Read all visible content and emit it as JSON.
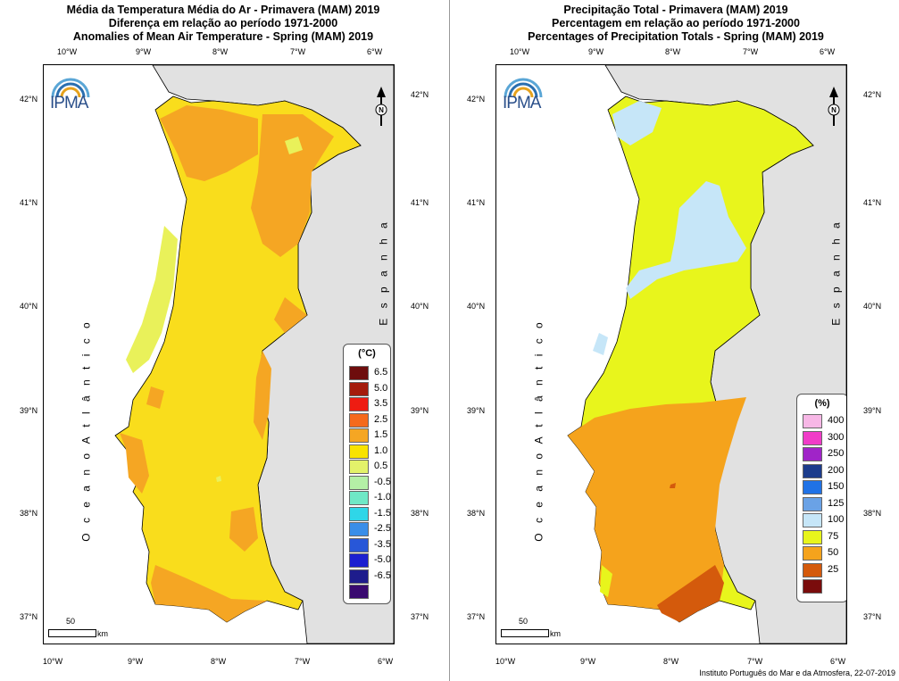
{
  "colors": {
    "spain_fill": "#e1e1e1",
    "ocean_fill": "#ffffff",
    "border": "#000000"
  },
  "left": {
    "title_lines": [
      "Média da Temperatura Média do Ar  - Primavera (MAM) 2019",
      "Diferença em relação ao período 1971-2000",
      "Anomalies of Mean Air Temperature - Spring (MAM) 2019"
    ],
    "legend": {
      "title": "(°C)",
      "items": [
        {
          "label": "6.5",
          "color": "#6e0d0d"
        },
        {
          "label": "5.0",
          "color": "#a51c0c"
        },
        {
          "label": "3.5",
          "color": "#ee1c12"
        },
        {
          "label": "2.5",
          "color": "#f56a1c"
        },
        {
          "label": "1.5",
          "color": "#f5a623"
        },
        {
          "label": "1.0",
          "color": "#f9e300"
        },
        {
          "label": "0.5",
          "color": "#e3f26a"
        },
        {
          "label": "-0.5",
          "color": "#b4f0a6"
        },
        {
          "label": "-1.0",
          "color": "#6fe8c6"
        },
        {
          "label": "-1.5",
          "color": "#2fd6e8"
        },
        {
          "label": "-2.5",
          "color": "#3a8ee8"
        },
        {
          "label": "-3.5",
          "color": "#2857d8"
        },
        {
          "label": "-5.0",
          "color": "#1c20d0"
        },
        {
          "label": "-6.5",
          "color": "#1e1c8c"
        },
        {
          "label": "",
          "color": "#3a0a70"
        }
      ]
    },
    "base_fill": "#f9dd1c",
    "patches": {
      "orange": "#f5a623",
      "lightyellow": "#e9f15a",
      "yellowish": "#f7e73a"
    },
    "ocean_label": "O c e a n o    A t l â n t i c o",
    "spain_label": "E s p a n h a"
  },
  "right": {
    "title_lines": [
      "Precipitação Total  - Primavera (MAM) 2019",
      "Percentagem em relação ao período 1971-2000",
      "Percentages of Precipitation Totals - Spring (MAM) 2019"
    ],
    "legend": {
      "title": "(%)",
      "items": [
        {
          "label": "400",
          "color": "#f7b7e6"
        },
        {
          "label": "300",
          "color": "#f03cc8"
        },
        {
          "label": "250",
          "color": "#a024c8"
        },
        {
          "label": "200",
          "color": "#1c3c8c"
        },
        {
          "label": "150",
          "color": "#2072e6"
        },
        {
          "label": "125",
          "color": "#6aa2e6"
        },
        {
          "label": "100",
          "color": "#c6e6f8"
        },
        {
          "label": "75",
          "color": "#e8f51c"
        },
        {
          "label": "50",
          "color": "#f5a31c"
        },
        {
          "label": "25",
          "color": "#d45a0c"
        },
        {
          "label": "",
          "color": "#7a0c0c"
        }
      ]
    },
    "base_fill": "#e8f51c",
    "patches": {
      "blue": "#c6e6f8",
      "orange": "#f5a31c",
      "dark": "#d45a0c"
    },
    "ocean_label": "O c e a n o    A t l â n t i c o",
    "spain_label": "E s p a n h a"
  },
  "axes": {
    "lon_labels": [
      "10°W",
      "9°W",
      "8°W",
      "7°W",
      "6°W"
    ],
    "lat_labels": [
      "42°N",
      "41°N",
      "40°N",
      "39°N",
      "38°N",
      "37°N"
    ]
  },
  "logo": {
    "text": "IPMA"
  },
  "scale": {
    "number": "50",
    "unit": "km"
  },
  "credit": "Instituto Português do Mar e da Atmosfera, 22-07-2019"
}
